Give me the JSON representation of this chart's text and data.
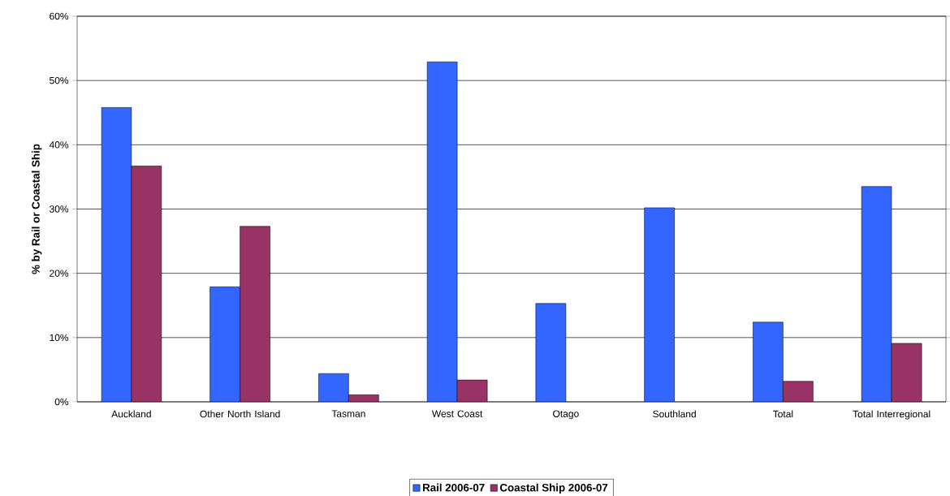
{
  "chart_data": {
    "type": "bar",
    "ylabel": "% by Rail or Coastal Ship",
    "categories": [
      "Auckland",
      "Other North Island",
      "Tasman",
      "West Coast",
      "Otago",
      "Southland",
      "Total",
      "Total Interregional"
    ],
    "series": [
      {
        "name": "Rail 2006-07",
        "color": "#3366ff",
        "values": [
          45.8,
          17.9,
          4.4,
          52.9,
          15.3,
          30.2,
          12.4,
          33.5
        ]
      },
      {
        "name": "Coastal Ship 2006-07",
        "color": "#993366",
        "values": [
          36.7,
          27.3,
          1.1,
          3.4,
          null,
          null,
          3.2,
          9.1
        ]
      }
    ],
    "ylim": [
      0,
      60
    ],
    "yticks": [
      {
        "value": 0,
        "label": "0%"
      },
      {
        "value": 10,
        "label": "10%"
      },
      {
        "value": 20,
        "label": "20%"
      },
      {
        "value": 30,
        "label": "30%"
      },
      {
        "value": 40,
        "label": "40%"
      },
      {
        "value": 50,
        "label": "50%"
      },
      {
        "value": 60,
        "label": "60%"
      }
    ],
    "grid": "y",
    "legend": "bottom"
  }
}
